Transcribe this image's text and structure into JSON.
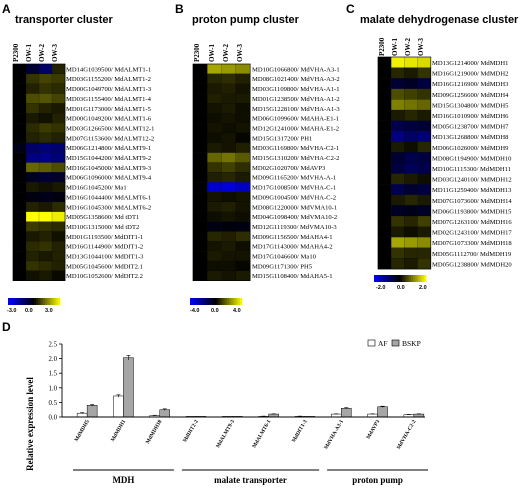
{
  "panels": [
    {
      "label": "A",
      "title": "transporter cluster",
      "columns": [
        "P2300",
        "OW-1",
        "OW-2",
        "OW-3"
      ],
      "rows": [
        "MD14G1039500/ MdALMT1-1",
        "MD03G1155200/ MdALMT1-2",
        "MD00G1049700/ MdALMT1-3",
        "MD03G1155400/ MdALMT1-4",
        "MD01G1173000/ MdALMT1-5",
        "MD00G1049200/ MdALMT1-6",
        "MD03G1266500/ MdALMT12-1",
        "MD07G1153600/ MdALMT12-2",
        "MD06G1214800/ MdALMT9-1",
        "MD15G1044200/ MdALMT9-2",
        "MD16G1045000/ MdALMT9-3",
        "MD06G1096000/ MdALMT9-4",
        "MD16G1045200/ Ma1",
        "MD16G1044400/ MdALMT6-1",
        "MD16G1045300/ MdALMT6-2",
        "MD05G1358600/ Md tDT1",
        "MD10G1315000/ Md tDT2",
        "MD01G1193500/ MdDIT1-1",
        "MD16G1144900/ MdDIT1-2",
        "MD13G1044100/ MdDIT1-3",
        "MD05G1045600/ MdDIT2.1",
        "MD10G1052600/ MdDIT2.2"
      ],
      "values": [
        [
          0.0,
          -0.6,
          -1.2,
          0.4
        ],
        [
          0.0,
          0.6,
          0.8,
          0.7
        ],
        [
          0.0,
          0.4,
          0.6,
          0.5
        ],
        [
          0.0,
          0.9,
          1.0,
          0.8
        ],
        [
          0.0,
          0.6,
          0.4,
          0.3
        ],
        [
          0.0,
          0.3,
          0.2,
          0.4
        ],
        [
          0.0,
          0.5,
          0.7,
          0.6
        ],
        [
          0.0,
          0.4,
          0.5,
          0.4
        ],
        [
          -0.3,
          -1.2,
          -1.4,
          -1.3
        ],
        [
          0.0,
          -1.5,
          -1.6,
          -1.4
        ],
        [
          0.0,
          1.2,
          1.1,
          0.9
        ],
        [
          0.0,
          -0.4,
          -0.6,
          -0.5
        ],
        [
          0.0,
          0.3,
          0.2,
          0.3
        ],
        [
          0.0,
          -0.2,
          -0.3,
          -0.2
        ],
        [
          0.0,
          0.4,
          0.3,
          0.5
        ],
        [
          0.0,
          3.0,
          3.0,
          2.8
        ],
        [
          0.0,
          0.7,
          0.6,
          0.5
        ],
        [
          0.0,
          0.3,
          0.4,
          0.2
        ],
        [
          0.0,
          0.5,
          0.6,
          0.4
        ],
        [
          0.0,
          0.4,
          0.3,
          0.4
        ],
        [
          0.0,
          0.6,
          0.5,
          0.4
        ],
        [
          0.0,
          0.2,
          0.3,
          0.1
        ]
      ],
      "scale_min": -3.0,
      "scale_mid": 0.0,
      "scale_max": 3.0,
      "scale_labels": [
        "-3.0",
        "0.0",
        "3.0"
      ]
    },
    {
      "label": "B",
      "title": "proton pump cluster",
      "columns": [
        "P2300",
        "OW-1",
        "OW-2",
        "OW-3"
      ],
      "rows": [
        "MD10G1066800/ MdVHA-A3-1",
        "MD08G1021400/ MdVHA-A3-2",
        "MD03G1109800/ MdVHA-A1-1",
        "MD01G1238500/ MdVHA-A1-2",
        "MD15G1228100/ MdVHA-A1-3",
        "MD06G1099600/ MdAHA-E1-1",
        "MD12G1241000/ MdAHA-E1-2",
        "MD15G1317200/ PH1",
        "MD03G1169800/ MdVHA-C2-1",
        "MD15G1310200/ MdVHA-C2-2",
        "MD02G1020700/ MdAVP3",
        "MD09G1165200/ MdVHA-A-1",
        "MD17G1008500/ MdVHA-C-1",
        "MD09G1004500/ MdVHA-C-2",
        "MD08G1220000/ MdVMA10-1",
        "MD04G1098400/ MdVMA10-2",
        "MD12G1119300/ MdVMA10-3",
        "MD09G1156500/ MdAHA4-1",
        "MD17G1143000/ MdAHA4-2",
        "MD17G1046600/ Ma10",
        "MD09G1171300/ PH5",
        "MD15G1108400/ MdAHA5-1"
      ],
      "values": [
        [
          0.0,
          2.6,
          2.4,
          2.2
        ],
        [
          0.0,
          0.6,
          0.7,
          0.5
        ],
        [
          0.0,
          0.4,
          0.5,
          0.3
        ],
        [
          0.0,
          0.5,
          0.4,
          0.4
        ],
        [
          0.0,
          0.3,
          0.4,
          0.2
        ],
        [
          0.0,
          0.2,
          0.3,
          0.2
        ],
        [
          0.0,
          0.3,
          0.2,
          0.3
        ],
        [
          0.0,
          0.2,
          0.3,
          0.1
        ],
        [
          0.0,
          0.4,
          0.3,
          0.5
        ],
        [
          0.0,
          1.6,
          1.8,
          1.4
        ],
        [
          0.0,
          0.8,
          1.0,
          0.7
        ],
        [
          0.0,
          0.5,
          0.6,
          0.4
        ],
        [
          0.0,
          -3.2,
          -3.4,
          -3.0
        ],
        [
          0.0,
          0.3,
          0.2,
          0.3
        ],
        [
          0.0,
          0.4,
          0.5,
          0.3
        ],
        [
          0.0,
          0.2,
          0.3,
          0.2
        ],
        [
          0.0,
          -0.3,
          -0.2,
          -0.3
        ],
        [
          0.0,
          0.6,
          0.5,
          0.7
        ],
        [
          0.0,
          0.3,
          0.4,
          0.2
        ],
        [
          0.0,
          0.4,
          0.3,
          0.3
        ],
        [
          0.0,
          0.2,
          0.2,
          0.1
        ],
        [
          0.0,
          0.4,
          0.3,
          0.4
        ]
      ],
      "scale_min": -4.0,
      "scale_mid": 0.0,
      "scale_max": 4.0,
      "scale_labels": [
        "-4.0",
        "0.0",
        "4.0"
      ]
    },
    {
      "label": "C",
      "title": "malate dehydrogenase cluster",
      "columns": [
        "P2300",
        "OW-1",
        "OW-2",
        "OW-3"
      ],
      "rows": [
        "MD13G1214000/ MdMDH1",
        "MD16G1219000/ MdMDH2",
        "MD16G1216900/ MdMDH3",
        "MD09G1256600/ MdMDH4",
        "MD15G1304800/ MdMDH5",
        "MD16G1010900/ MdMDH6",
        "MD05G1238700/ MdMDH7",
        "MD13G1268800/ MdMDH8",
        "MD06G1026000/ MdMDH9",
        "MD08G1194900/ MdMDH10",
        "MD10G1115300/ MdMDH11",
        "MD03G1240100/ MdMDH12",
        "MD11G1259400/ MdMDH13",
        "MD07G1073600/ MdMDH14",
        "MD06G1193800/ MdMDH15",
        "MD07G1263100/ MdMDH16",
        "MD02G1243100/ MdMDH17",
        "MD07G1073300/ MdMDH18",
        "MD05G1112700/ MdMDH19",
        "MD05G1238800/ MdMDH20"
      ],
      "values": [
        [
          0.0,
          1.9,
          1.8,
          1.7
        ],
        [
          0.0,
          0.3,
          0.2,
          0.4
        ],
        [
          0.0,
          -0.4,
          -0.3,
          -0.5
        ],
        [
          0.0,
          0.6,
          0.5,
          0.4
        ],
        [
          0.0,
          1.0,
          0.9,
          0.8
        ],
        [
          0.0,
          0.2,
          0.3,
          0.2
        ],
        [
          0.0,
          -0.6,
          -0.5,
          -0.4
        ],
        [
          0.0,
          -1.0,
          -0.8,
          -0.9
        ],
        [
          0.0,
          0.2,
          0.1,
          0.3
        ],
        [
          0.0,
          -0.4,
          -0.6,
          -0.5
        ],
        [
          0.0,
          -0.5,
          -0.7,
          -0.6
        ],
        [
          0.0,
          0.3,
          0.2,
          0.1
        ],
        [
          0.0,
          -0.6,
          -0.4,
          -0.5
        ],
        [
          0.0,
          0.2,
          0.3,
          0.2
        ],
        [
          0.0,
          -0.3,
          -0.2,
          -0.3
        ],
        [
          0.0,
          0.4,
          0.3,
          0.5
        ],
        [
          0.0,
          0.2,
          0.1,
          0.2
        ],
        [
          0.0,
          1.3,
          1.2,
          1.1
        ],
        [
          0.0,
          0.4,
          0.3,
          0.3
        ],
        [
          0.0,
          0.3,
          0.2,
          0.4
        ]
      ],
      "scale_min": -2.0,
      "scale_mid": 0.0,
      "scale_max": 2.0,
      "scale_labels": [
        "-2.0",
        "0.0",
        "2.0"
      ]
    }
  ],
  "panel_d": {
    "label": "D",
    "chart_data": {
      "type": "bar",
      "ylabel": "Relative expression level",
      "ylim": [
        0,
        2.5
      ],
      "yticks": [
        "0.0",
        "0.5",
        "1.0",
        "1.5",
        "2.0",
        "2.5"
      ],
      "categories": [
        "MdMDH5",
        "MdMDH1",
        "MdMDH18",
        "MdDIT2-2",
        "MdALMT9-3",
        "MdALMT6-1",
        "MdDIT1-3",
        "MdVHA-A3-1",
        "MdAVP3",
        "MdVHA-C2-2"
      ],
      "series": [
        {
          "name": "AF",
          "values": [
            0.13,
            0.72,
            0.05,
            0.01,
            0.01,
            0.02,
            0.02,
            0.1,
            0.1,
            0.08
          ]
        },
        {
          "name": "BSKP",
          "values": [
            0.4,
            2.03,
            0.25,
            0.01,
            0.01,
            0.1,
            0.01,
            0.3,
            0.35,
            0.1
          ]
        }
      ],
      "errors": {
        "AF": [
          0.02,
          0.04,
          0.01,
          0.0,
          0.0,
          0.01,
          0.01,
          0.01,
          0.01,
          0.01
        ],
        "BSKP": [
          0.03,
          0.08,
          0.03,
          0.0,
          0.0,
          0.01,
          0.0,
          0.02,
          0.02,
          0.01
        ]
      },
      "groups": [
        {
          "name": "MDH",
          "from": 0,
          "to": 2
        },
        {
          "name": "malate transporter",
          "from": 3,
          "to": 6
        },
        {
          "name": "proton pump",
          "from": 7,
          "to": 9
        }
      ],
      "legend_position": "top-right",
      "colors": {
        "AF": "#ffffff",
        "BSKP": "#a6a6a6"
      }
    }
  }
}
